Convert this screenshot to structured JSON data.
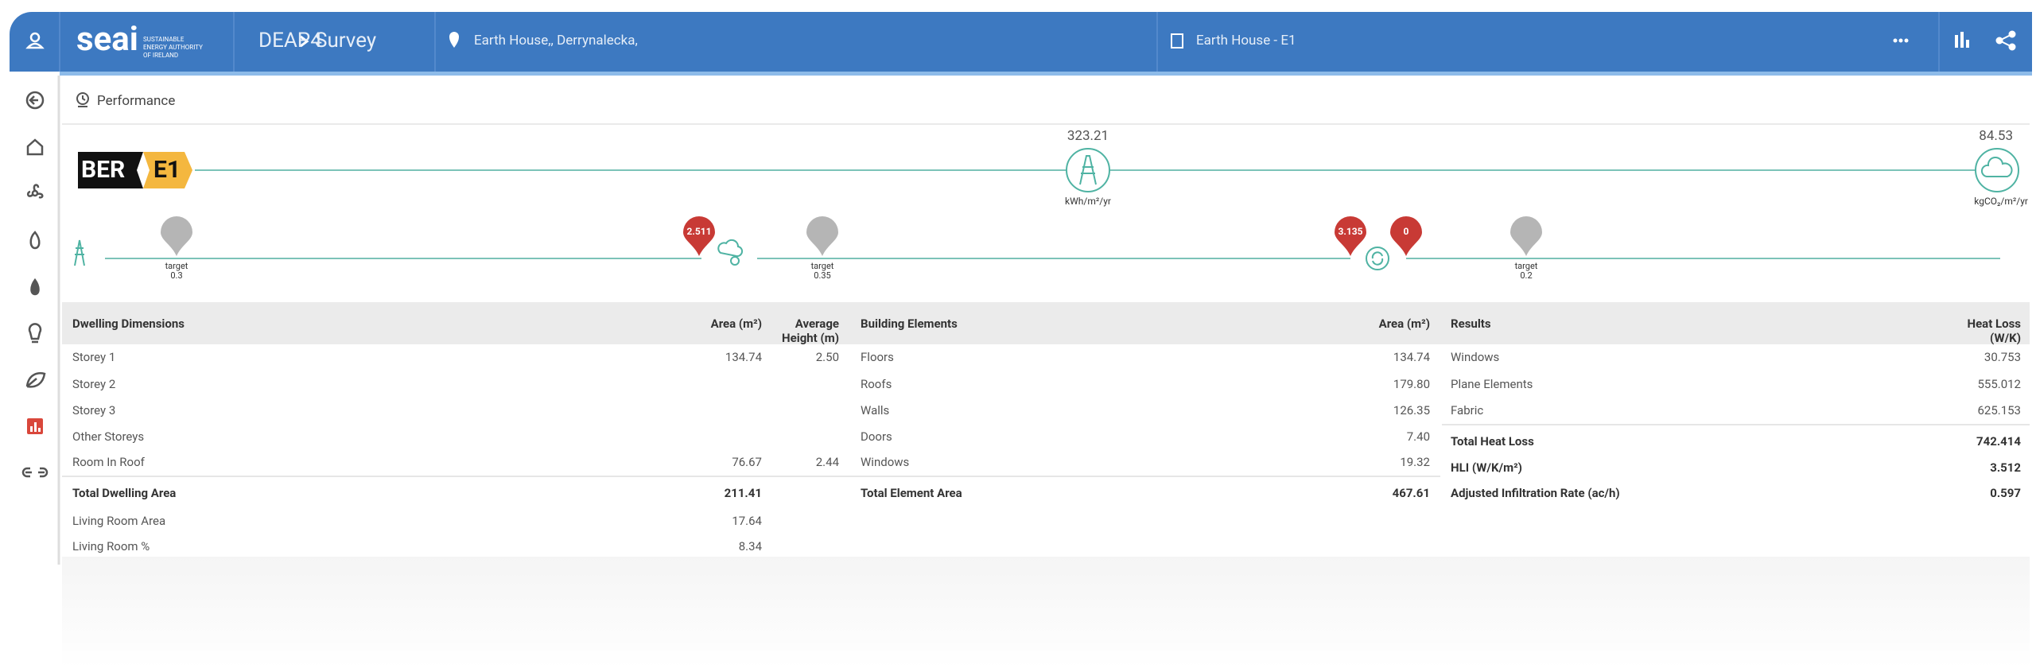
{
  "header": {
    "logo": "seai",
    "logo_tagline": "SUSTAINABLE ENERGY AUTHORITY OF IRELAND",
    "app": "DEAP4",
    "section": "Survey",
    "address": "Earth House,, Derrynalecka,",
    "assessment": "Earth House - E1"
  },
  "performance": {
    "title": "Performance",
    "ber_label": "BER",
    "ber_rating": "E1",
    "energy": {
      "value": "323.21",
      "unit": "kWh/m²/yr"
    },
    "co2": {
      "value": "84.53",
      "unit": "kgCO₂/m²/yr"
    },
    "groups": [
      {
        "target": {
          "label": "target",
          "value": "0.3"
        },
        "results": [
          "2.511"
        ]
      },
      {
        "target": {
          "label": "target",
          "value": "0.35"
        },
        "results": [
          "3.135",
          "0"
        ]
      },
      {
        "target": {
          "label": "target",
          "value": "0.2"
        }
      }
    ]
  },
  "dwelling": {
    "columns": [
      "Dwelling Dimensions",
      "Area (m²)",
      "Average Height (m)"
    ],
    "rows": [
      [
        "Storey 1",
        "134.74",
        "2.50"
      ],
      [
        "Storey 2"
      ],
      [
        "Storey 3"
      ],
      [
        "Other Storeys"
      ],
      [
        "Room In Roof",
        "76.67",
        "2.44"
      ]
    ],
    "totals": [
      [
        "Total Dwelling Area",
        "211.41"
      ],
      [
        "Living Room Area",
        "17.64"
      ],
      [
        "Living Room %",
        "8.34"
      ]
    ]
  },
  "elements": {
    "columns": [
      "Building Elements",
      "Area (m²)"
    ],
    "rows": [
      [
        "Floors",
        "134.74"
      ],
      [
        "Roofs",
        "179.80"
      ],
      [
        "Walls",
        "126.35"
      ],
      [
        "Doors",
        "7.40"
      ],
      [
        "Windows",
        "19.32"
      ]
    ],
    "totals": [
      [
        "Total Element Area",
        "467.61"
      ]
    ]
  },
  "results": {
    "columns": [
      "Results",
      "Heat Loss (W/K)"
    ],
    "rows": [
      [
        "Windows",
        "30.753"
      ],
      [
        "Plane Elements",
        "555.012"
      ],
      [
        "Fabric",
        "625.153"
      ]
    ],
    "totals": [
      [
        "Total Heat Loss",
        "742.414"
      ],
      [
        "HLI (W/K/m²)",
        "3.512"
      ],
      [
        "Adjusted Infiltration Rate (ac/h)",
        "0.597"
      ]
    ]
  }
}
